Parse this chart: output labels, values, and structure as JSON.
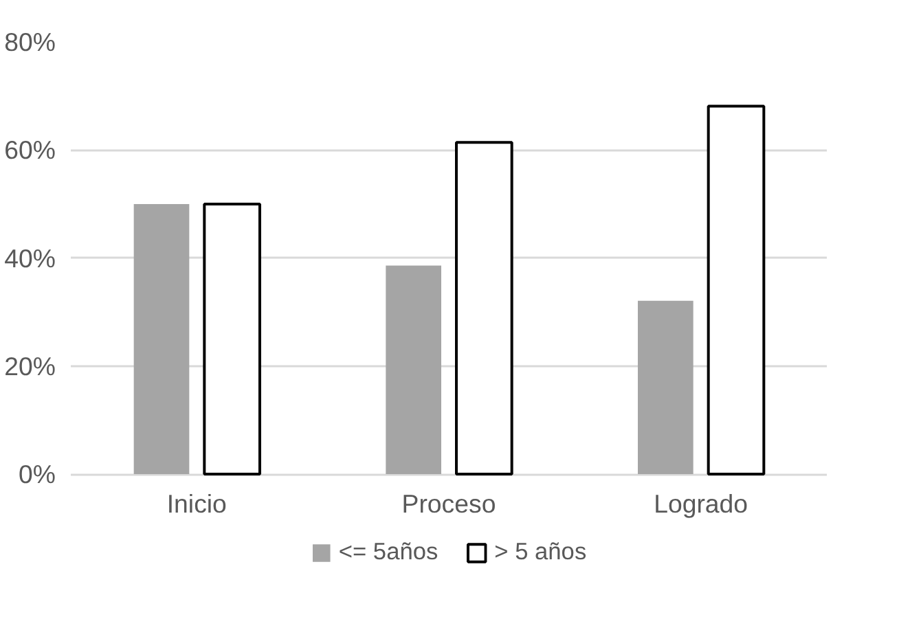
{
  "chart_data": {
    "type": "bar",
    "categories": [
      "Inicio",
      "Proceso",
      "Logrado"
    ],
    "series": [
      {
        "name": "<= 5años",
        "color": "#a5a5a5",
        "values": [
          50,
          38.6,
          32.1
        ]
      },
      {
        "name": "> 5 años",
        "color": "#ffffff",
        "values": [
          50,
          61.4,
          68.1
        ]
      }
    ],
    "ylim": [
      0,
      80
    ],
    "yticks": [
      {
        "value": 0,
        "label": "0%"
      },
      {
        "value": 20,
        "label": "20%"
      },
      {
        "value": 40,
        "label": "40%"
      },
      {
        "value": 60,
        "label": "60%"
      },
      {
        "value": 80,
        "label": "80%"
      }
    ],
    "grid": "y",
    "legend": "bottom"
  }
}
